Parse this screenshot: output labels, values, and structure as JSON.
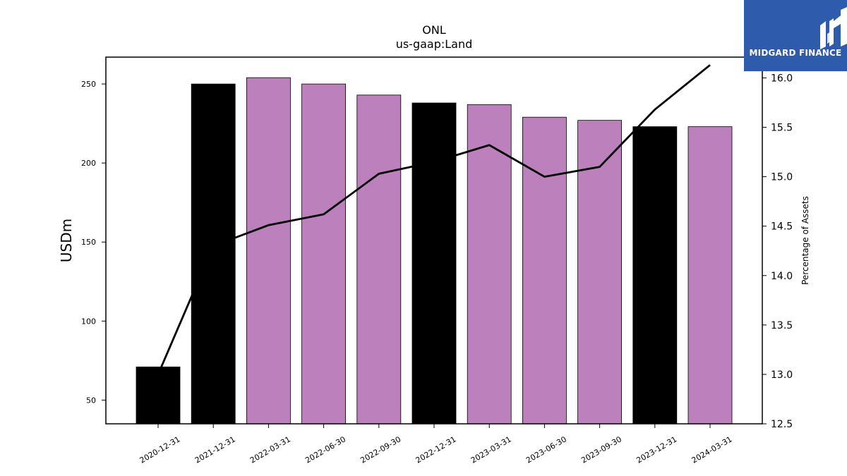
{
  "logo": {
    "text": "MIDGARD FINANCE",
    "background": "#2e5bab"
  },
  "chart_data": {
    "type": "bar",
    "title": "ONL",
    "subtitle": "us-gaap:Land",
    "ylabel": "USDm",
    "y2label": "Percentage of Assets",
    "categories": [
      "2020-12-31",
      "2021-12-31",
      "2022-03-31",
      "2022-06-30",
      "2022-09-30",
      "2022-12-31",
      "2023-03-31",
      "2023-06-30",
      "2023-09-30",
      "2023-12-31",
      "2024-03-31"
    ],
    "series": [
      {
        "type": "bar",
        "values": [
          71,
          250,
          254,
          250,
          243,
          238,
          237,
          229,
          227,
          223,
          223
        ],
        "colors": [
          "#000000",
          "#000000",
          "#bc80bd",
          "#bc80bd",
          "#bc80bd",
          "#000000",
          "#bc80bd",
          "#bc80bd",
          "#bc80bd",
          "#000000",
          "#bc80bd"
        ]
      },
      {
        "type": "line",
        "axis": "right",
        "color": "#000000",
        "values": [
          13.0,
          14.3,
          14.51,
          14.62,
          15.03,
          15.15,
          15.32,
          15.0,
          15.1,
          15.68,
          16.13
        ]
      }
    ],
    "ylim": [
      35,
      267
    ],
    "yticks": [
      50,
      100,
      150,
      200,
      250
    ],
    "y2lim": [
      12.5,
      16.21
    ],
    "y2ticks": [
      "12.5",
      "13.0",
      "13.5",
      "14.0",
      "14.5",
      "15.0",
      "15.5",
      "16.0"
    ],
    "grid": false,
    "legend": "none"
  }
}
